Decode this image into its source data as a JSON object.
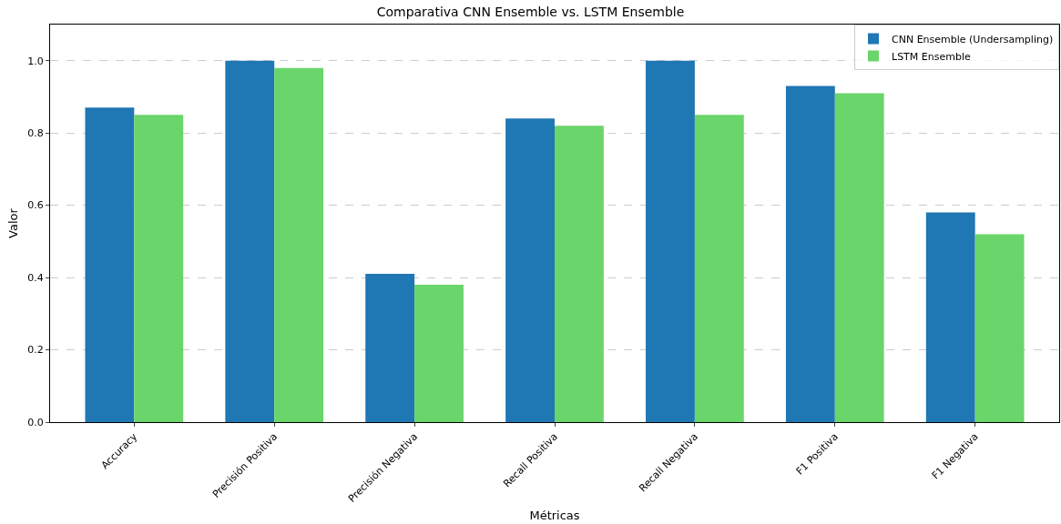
{
  "chart_data": {
    "type": "bar",
    "title": "Comparativa CNN Ensemble vs. LSTM Ensemble",
    "xlabel": "Métricas",
    "ylabel": "Valor",
    "categories": [
      "Accuracy",
      "Precisión Positiva",
      "Precisión Negativa",
      "Recall Positiva",
      "Recall Negativa",
      "F1 Positiva",
      "F1 Negativa"
    ],
    "series": [
      {
        "name": "CNN Ensemble (Undersampling)",
        "color": "#1f77b4",
        "values": [
          0.87,
          1.0,
          0.41,
          0.84,
          1.0,
          0.93,
          0.58
        ]
      },
      {
        "name": "LSTM Ensemble",
        "color": "#6ad56a",
        "values": [
          0.85,
          0.98,
          0.38,
          0.82,
          0.85,
          0.91,
          0.52
        ]
      }
    ],
    "ylim": [
      0,
      1.1
    ],
    "yticks": [
      {
        "value": 0,
        "label": "0.0"
      },
      {
        "value": 0.2,
        "label": "0.2"
      },
      {
        "value": 0.4,
        "label": "0.4"
      },
      {
        "value": 0.6,
        "label": "0.6"
      },
      {
        "value": 0.8,
        "label": "0.8"
      },
      {
        "value": 1,
        "label": "1.0"
      }
    ],
    "grid": "y",
    "legend": "top right"
  }
}
